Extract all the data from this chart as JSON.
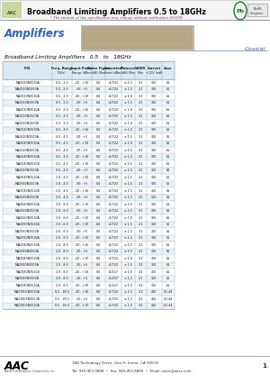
{
  "title": "Broadband Limiting Amplifiers 0.5 to 18GHz",
  "subtitle": "* The content of this specification may change without notification 4/11/05",
  "section_title": "Amplifiers",
  "table_subtitle": "Broadband Limiting Amplifiers   0.5   to   18GHz",
  "coaxial_label": "Coaxial",
  "rows": [
    [
      "MA2020N3510A",
      "0.5 - 2.0",
      "-20 , +10",
      "6.0",
      "<17/22",
      "± 1.5",
      "2:1",
      "300",
      "61"
    ],
    [
      "MA2020N3500A",
      "0.5 - 2.0",
      "-30 , +5",
      "6.0",
      "<17/22",
      "± 1.5",
      "2:1",
      "300",
      "61"
    ],
    [
      "MA2020N3510A",
      "0.5 - 2.0",
      "-20 , +10",
      "6.0",
      "<17/22",
      "± 1.0",
      "2:1",
      "300",
      "61"
    ],
    [
      "MA2020N3500A",
      "0.5 - 2.0",
      "-30 , +5",
      "6.0",
      "<17/22",
      "± 1.5",
      "2:1",
      "300",
      "61"
    ],
    [
      "MA2020N3510A",
      "0.5 - 2.0",
      "-20 , +10",
      "6.0",
      "<17/22",
      "± 1.0",
      "2:1",
      "300",
      "61"
    ],
    [
      "MA2020N3500A",
      "0.5 - 2.0",
      "-30 , +5",
      "6.0",
      "<17/22",
      "± 1.5",
      "2:1",
      "350",
      "61"
    ],
    [
      "MA2020N3500B",
      "0.5 - 2.0",
      "-30 , +5",
      "6.0",
      "<17/22",
      "± 1.0",
      "2:1",
      "300",
      "61"
    ],
    [
      "MA2040N3510A",
      "0.5 - 4.0",
      "-20 , +10",
      "6.0",
      "<17/22",
      "± 1.5",
      "2:1",
      "300",
      "61"
    ],
    [
      "MA2040N3500A",
      "0.5 - 4.0",
      "-30 , +5",
      "6.0",
      "<17/22",
      "± 1.5",
      "2:1",
      "300",
      "61"
    ],
    [
      "MA2040N3510A",
      "0.5 - 4.0",
      "-20 , +10",
      "6.0",
      "<17/22",
      "± 1.0",
      "2:1",
      "300",
      "61"
    ],
    [
      "MA2040N3500A",
      "0.5 - 4.0",
      "-30 , +5",
      "6.0",
      "<17/22",
      "± 1.5",
      "2:1",
      "300",
      "61"
    ],
    [
      "MA2040N3510A",
      "0.5 - 4.0",
      "-20 , +10",
      "6.0",
      "<17/22",
      "± 1.0",
      "2:1",
      "300",
      "61"
    ],
    [
      "MA2040N3510B",
      "0.5 - 4.0",
      "-20 , +10",
      "6.0",
      "<17/22",
      "± 1.5",
      "2:1",
      "350",
      "61"
    ],
    [
      "MA2040N3500B",
      "0.5 - 4.0",
      "-30 , +5",
      "6.0",
      "<17/22",
      "± 1.5",
      "2:1",
      "350",
      "64"
    ],
    [
      "MA2040N3510A",
      "2.0 - 4.0",
      "-20 , +10",
      "6.0",
      "<17/22",
      "± 1.5",
      "2:1",
      "300",
      "61"
    ],
    [
      "MA2040N3500A",
      "2.0 - 4.0",
      "-30 , +5",
      "6.0",
      "<17/22",
      "± 1.5",
      "2:1",
      "300",
      "61"
    ],
    [
      "MA2040N3510B",
      "2.0 - 4.0",
      "-20 , +10",
      "6.0",
      "<17/22",
      "± 1.5",
      "2:1",
      "350",
      "61"
    ],
    [
      "MA2040N3500B",
      "2.0 - 4.0",
      "-30 , +5",
      "6.0",
      "<17/22",
      "± 1.5",
      "2:1",
      "350",
      "61"
    ],
    [
      "MA2060N3510A",
      "2.0 - 6.0",
      "-20 , +10",
      "6.0",
      "<17/22",
      "± 1.5",
      "2:1",
      "300",
      "61"
    ],
    [
      "MA2060N3500A",
      "2.0 - 6.0",
      "-30 , +5",
      "6.0",
      "<17/22",
      "± 1.5",
      "2:1",
      "300",
      "61"
    ],
    [
      "MA2060N3510A",
      "2.0 - 6.0",
      "-20 , +10",
      "6.0",
      "<17/22",
      "± 1.0",
      "2:1",
      "300",
      "61"
    ],
    [
      "MA2060N3510B",
      "2.0 - 6.0",
      "-20 , +10",
      "6.0",
      "<17/22",
      "± 1.5",
      "2:1",
      "350",
      "61"
    ],
    [
      "MA2060N3500B",
      "2.0 - 6.0",
      "-30 , +5",
      "6.0",
      "<17/22",
      "± 1.5",
      "2:1",
      "350",
      "61"
    ],
    [
      "MA2060N3510A",
      "2.0 - 6.0",
      "-20 , +10",
      "6.0",
      "<17/22",
      "± 1.5",
      "2:1",
      "300",
      "61"
    ],
    [
      "MA2080N3510A",
      "2.0 - 8.0",
      "-20 , +10",
      "6.0",
      "<17/22",
      "± 1.5",
      "2:1",
      "300",
      "61"
    ],
    [
      "MA2080N3500A",
      "2.0 - 8.0",
      "-30 , +5",
      "6.0",
      "<17/22",
      "± 1.5",
      "2:1",
      "300",
      "61"
    ],
    [
      "MA2080N3510A",
      "2.0 - 8.0",
      "-20 , +10",
      "6.0",
      "<17/22",
      "± 1.0",
      "2:1",
      "300",
      "61"
    ],
    [
      "MA2080N3500A",
      "2.0 - 8.0",
      "-30 , +5",
      "6.0",
      "<17/22",
      "± 1.5",
      "2:1",
      "350",
      "61"
    ],
    [
      "MA2080N3510B",
      "2.0 - 8.0",
      "-20 , +10",
      "6.0",
      "<12/17",
      "± 1.5",
      "2:1",
      "350",
      "61"
    ],
    [
      "MA2080N3500B",
      "2.0 - 8.0",
      "-30 , +5",
      "6.0",
      "<12/17",
      "± 1.5",
      "2:1",
      "350",
      "61"
    ],
    [
      "MA2080N3510A",
      "2.0 - 8.0",
      "-20 , +10",
      "6.0",
      "<12/17",
      "± 1.5",
      "2:1",
      "300",
      "61"
    ],
    [
      "MA21803N3510A",
      "0.5 - 18.0",
      "-20 , +10",
      "6.0",
      "<17/22",
      "± 1.5",
      "2:1",
      "400",
      "61 44"
    ],
    [
      "MA21803N3500A",
      "0.5 - 18.0",
      "-30 , +5",
      "6.0",
      "<17/22",
      "± 1.5",
      "2:1",
      "450",
      "61 44"
    ],
    [
      "MA21803N3510A",
      "0.5 - 18.0",
      "-20 , +10",
      "6.0",
      "<17/22",
      "± 1.5",
      "2:1",
      "450",
      "61 44"
    ]
  ],
  "col_headers_line1": [
    "P/N",
    "Freq. Range",
    "Input Power",
    "Noise Figure",
    "Saturated",
    "Flatness",
    "VSWR",
    "Current",
    "Case"
  ],
  "col_headers_line2": [
    "",
    "(GHz)",
    "Range",
    "(dB)",
    "Point",
    "(dB)",
    "",
    "+12V (mA)",
    ""
  ],
  "col_headers_line3": [
    "",
    "",
    "(dBm)",
    "Max",
    "(dBm)",
    "Max",
    "Max",
    "Typ",
    ""
  ],
  "footer_address": "188 Technology Drive, Unit H, Irvine, CA 92618",
  "footer_tel": "Tel: 949-453-9888  •  Fax: 949-453-8889  •  Email: sales@aacx.com",
  "footer_page": "1",
  "bg_color": "#ffffff",
  "header_bg_color": "#d8eaf4",
  "alt_row_color": "#e8f2f8",
  "border_color": "#aaaaaa",
  "title_color": "#000000",
  "section_color": "#3060c0",
  "coaxial_color": "#3060c0",
  "rohs_green": "#207820"
}
